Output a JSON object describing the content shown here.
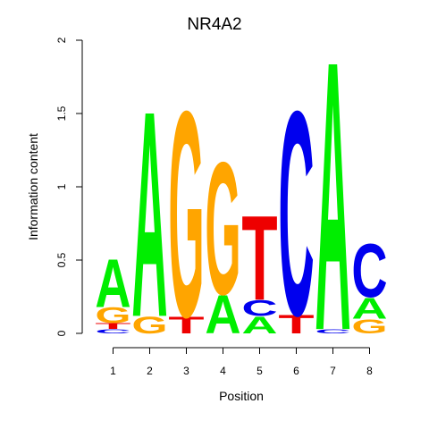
{
  "chart_data": {
    "type": "sequence-logo",
    "title": "NR4A2",
    "xlabel": "Position",
    "ylabel": "Information content",
    "ylim": [
      0,
      2
    ],
    "yticks": [
      "0",
      "0.5",
      "1",
      "1.5",
      "2"
    ],
    "xticks": [
      "1",
      "2",
      "3",
      "4",
      "5",
      "6",
      "7",
      "8"
    ],
    "positions": [
      {
        "position": "1",
        "letters": [
          {
            "base": "C",
            "height": 0.03
          },
          {
            "base": "T",
            "height": 0.04
          },
          {
            "base": "G",
            "height": 0.11
          },
          {
            "base": "A",
            "height": 0.34
          }
        ]
      },
      {
        "position": "2",
        "letters": [
          {
            "base": "G",
            "height": 0.12
          },
          {
            "base": "A",
            "height": 1.46
          }
        ]
      },
      {
        "position": "3",
        "letters": [
          {
            "base": "T",
            "height": 0.12
          },
          {
            "base": "G",
            "height": 1.46
          }
        ]
      },
      {
        "position": "4",
        "letters": [
          {
            "base": "A",
            "height": 0.27
          },
          {
            "base": "G",
            "height": 0.94
          }
        ]
      },
      {
        "position": "5",
        "letters": [
          {
            "base": "A",
            "height": 0.12
          },
          {
            "base": "C",
            "height": 0.11
          },
          {
            "base": "T",
            "height": 0.6
          }
        ]
      },
      {
        "position": "6",
        "letters": [
          {
            "base": "T",
            "height": 0.13
          },
          {
            "base": "C",
            "height": 1.45
          }
        ]
      },
      {
        "position": "7",
        "letters": [
          {
            "base": "C",
            "height": 0.03
          },
          {
            "base": "A",
            "height": 1.91
          }
        ]
      },
      {
        "position": "8",
        "letters": [
          {
            "base": "G",
            "height": 0.1
          },
          {
            "base": "A",
            "height": 0.15
          },
          {
            "base": "C",
            "height": 0.38
          }
        ]
      }
    ],
    "colors": {
      "A": "#00ee00",
      "C": "#0000ee",
      "G": "#ffa500",
      "T": "#ee0000"
    }
  }
}
